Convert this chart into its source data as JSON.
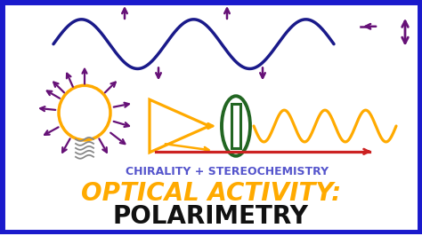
{
  "bg_color": "#ffffff",
  "border_color": "#1a1acc",
  "border_width": 5,
  "title1": "CHIRALITY + STEREOCHEMISTRY",
  "title2": "OPTICAL ACTIVITY:",
  "title3": "POLARIMETRY",
  "title1_color": "#5555cc",
  "title2_color": "#ffaa00",
  "title3_color": "#111111",
  "wave_top_color": "#1a1a8a",
  "orange_color": "#ffaa00",
  "purple": "#661177",
  "green_color": "#226622",
  "red_color": "#cc2222",
  "gray_color": "#888888"
}
